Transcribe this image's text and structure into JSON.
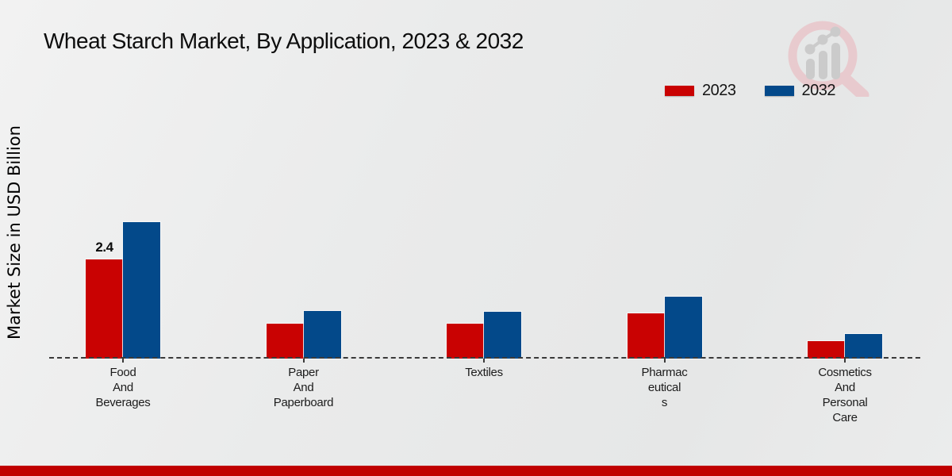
{
  "page": {
    "title": "Wheat Starch Market, By Application, 2023 & 2032",
    "y_axis_label": "Market Size in USD Billion"
  },
  "legend": {
    "position": "top-right",
    "items": [
      {
        "label": "2023",
        "color": "#c90202"
      },
      {
        "label": "2032",
        "color": "#03498a"
      }
    ]
  },
  "colors": {
    "series_2023": "#c90202",
    "series_2032": "#03498a",
    "footer_accent": "#c00000",
    "baseline": "#3a3a3a",
    "background": "#eaebeb",
    "watermark_pink": "#e9c6ca",
    "watermark_gray": "#c7c7c7"
  },
  "icons": {
    "watermark": "magnifier-growth-chart-logo"
  },
  "chart_data": {
    "type": "bar",
    "title": "Wheat Starch Market, By Application, 2023 & 2032",
    "xlabel": "",
    "ylabel": "Market Size in USD Billion",
    "categories": [
      "Food And Beverages",
      "Paper And Paperboard",
      "Textiles",
      "Pharmaceuticals",
      "Cosmetics And Personal Care"
    ],
    "category_label_lines": [
      [
        "Food",
        "And",
        "Beverages"
      ],
      [
        "Paper",
        "And",
        "Paperboard"
      ],
      [
        "Textiles"
      ],
      [
        "Pharmac",
        "eutical",
        "s"
      ],
      [
        "Cosmetics",
        "And",
        "Personal",
        "Care"
      ]
    ],
    "series": [
      {
        "name": "2023",
        "color": "#c90202",
        "values": [
          2.4,
          0.85,
          0.85,
          1.1,
          0.42
        ]
      },
      {
        "name": "2032",
        "color": "#03498a",
        "values": [
          3.3,
          1.15,
          1.13,
          1.5,
          0.6
        ]
      }
    ],
    "data_labels": [
      {
        "series_index": 0,
        "category_index": 0,
        "text": "2.4"
      }
    ],
    "axis": {
      "baseline_style": "dashed",
      "gridlines": false,
      "y_tick_labels_shown": false,
      "ylim": [
        0,
        4
      ]
    },
    "legend_position": "top-right"
  }
}
